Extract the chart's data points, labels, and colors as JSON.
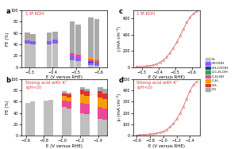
{
  "panel_a": {
    "title": "1 M KOH",
    "xlabel": "E (V versus RHE)",
    "ylabel": "FE (%)",
    "ylim": [
      0,
      100
    ],
    "xlim": [
      -0.265,
      -0.635
    ],
    "bar_width": 0.022,
    "bars": [
      {
        "x": -0.29,
        "segments": [
          42,
          5,
          0,
          0,
          0,
          0,
          0,
          14
        ]
      },
      {
        "x": -0.315,
        "segments": [
          40,
          5,
          0,
          0,
          0,
          0,
          0,
          13
        ]
      },
      {
        "x": -0.385,
        "segments": [
          40,
          6,
          0,
          0,
          0,
          0,
          0,
          15
        ]
      },
      {
        "x": -0.41,
        "segments": [
          42,
          7,
          0,
          0,
          0,
          0,
          0,
          14
        ]
      },
      {
        "x": -0.485,
        "segments": [
          12,
          8,
          0,
          0,
          5,
          0,
          0,
          55
        ]
      },
      {
        "x": -0.51,
        "segments": [
          10,
          7,
          0,
          0,
          5,
          0,
          0,
          53
        ]
      },
      {
        "x": -0.565,
        "segments": [
          3,
          5,
          1,
          1,
          3,
          3,
          0,
          72
        ]
      },
      {
        "x": -0.59,
        "segments": [
          2,
          4,
          1,
          1,
          4,
          3,
          0,
          70
        ]
      }
    ]
  },
  "panel_b": {
    "title": "Strong acid with K⁺\n(pH<0)",
    "xlabel": "E (V versus RHE)",
    "ylabel": "FE (%)",
    "ylim": [
      0,
      100
    ],
    "xlim": [
      -0.55,
      -1.5
    ],
    "bar_width": 0.055,
    "bars": [
      {
        "x": -0.625,
        "segments": [
          58,
          0,
          0,
          0,
          0,
          0,
          0,
          0
        ]
      },
      {
        "x": -0.675,
        "segments": [
          60,
          0,
          0,
          0,
          0,
          0,
          0,
          0
        ]
      },
      {
        "x": -0.825,
        "segments": [
          62,
          0,
          0,
          0,
          0,
          0,
          0,
          0
        ]
      },
      {
        "x": -0.875,
        "segments": [
          63,
          0,
          0,
          0,
          0,
          0,
          0,
          0
        ]
      },
      {
        "x": -1.025,
        "segments": [
          50,
          0,
          0,
          0,
          12,
          8,
          5,
          3
        ]
      },
      {
        "x": -1.075,
        "segments": [
          48,
          0,
          0,
          0,
          12,
          8,
          5,
          3
        ]
      },
      {
        "x": -1.225,
        "segments": [
          40,
          0,
          0,
          0,
          18,
          15,
          8,
          5
        ]
      },
      {
        "x": -1.275,
        "segments": [
          38,
          0,
          0,
          0,
          18,
          14,
          8,
          5
        ]
      },
      {
        "x": -1.425,
        "segments": [
          30,
          0,
          0,
          0,
          20,
          18,
          10,
          7
        ]
      },
      {
        "x": -1.475,
        "segments": [
          28,
          0,
          0,
          0,
          20,
          17,
          10,
          7
        ]
      }
    ]
  },
  "panel_c": {
    "title": "1 M KOH",
    "xlabel": "E (V versus RHE)",
    "ylabel": "j (mA cm⁻²)",
    "ylim": [
      0,
      700
    ],
    "xlim": [
      -0.25,
      -0.65
    ],
    "yticks": [
      0,
      200,
      400,
      600
    ],
    "xticks": [
      -0.3,
      -0.4,
      -0.5,
      -0.6
    ],
    "x_data": [
      -0.27,
      -0.29,
      -0.31,
      -0.33,
      -0.35,
      -0.37,
      -0.39,
      -0.41,
      -0.43,
      -0.45,
      -0.47,
      -0.49,
      -0.51,
      -0.53,
      -0.55,
      -0.57,
      -0.59,
      -0.61,
      -0.63
    ],
    "y_data": [
      3,
      5,
      8,
      12,
      18,
      25,
      38,
      58,
      85,
      125,
      175,
      235,
      305,
      385,
      465,
      550,
      615,
      658,
      688
    ]
  },
  "panel_d": {
    "title": "Strong acid with K⁺\n(pH<0)",
    "xlabel": "E (V versus RHE)",
    "ylabel": "jₑₗ (mA cm⁻²)",
    "ylim": [
      0,
      500
    ],
    "xlim": [
      -0.55,
      -1.55
    ],
    "yticks": [
      0,
      100,
      200,
      300,
      400,
      500
    ],
    "xticks": [
      -0.6,
      -0.8,
      -1.0,
      -1.2,
      -1.4
    ],
    "x_data": [
      -0.6,
      -0.65,
      -0.7,
      -0.75,
      -0.8,
      -0.85,
      -0.9,
      -0.95,
      -1.0,
      -1.05,
      -1.1,
      -1.15,
      -1.2,
      -1.25,
      -1.3,
      -1.35,
      -1.4,
      -1.45,
      -1.5
    ],
    "y_data": [
      4,
      6,
      8,
      10,
      13,
      16,
      20,
      28,
      38,
      52,
      75,
      105,
      145,
      195,
      255,
      325,
      395,
      448,
      478
    ]
  },
  "seg_colors": [
    "#c0c0c0",
    "#8b5cf6",
    "#1e3a9f",
    "#22aa44",
    "#ec4899",
    "#f59e0b",
    "#e03030",
    "#aaaaaa"
  ],
  "legend_labels": [
    "H₂",
    "HCOOH",
    "CH₃COOH",
    "1-C₂H₅OH",
    "C₂H₅OH",
    "C₂H₄",
    "CH₄",
    "CO"
  ],
  "legend_colors": [
    "#c0c0c0",
    "#8b5cf6",
    "#1e3a9f",
    "#22aa44",
    "#ec4899",
    "#f59e0b",
    "#e03030",
    "#aaaaaa"
  ],
  "line_color": "#e07878",
  "title_color": "#dd3333",
  "panel_labels": [
    "a",
    "b",
    "c",
    "d"
  ]
}
